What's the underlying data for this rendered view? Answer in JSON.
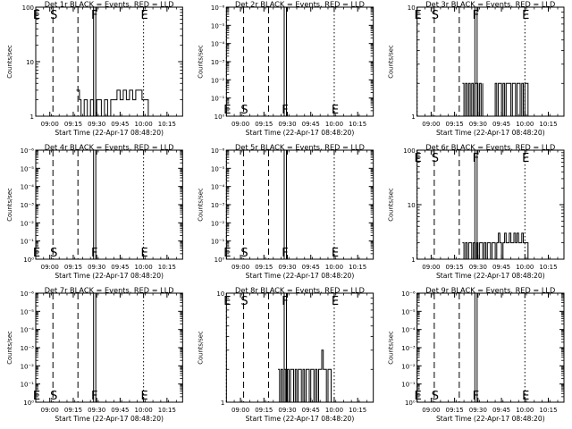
{
  "chart_data": [
    {
      "type": "line",
      "title": "Det 1r BLACK = Events, RED = LLD",
      "xlabel": "Start Time (22-Apr-17 08:48:20)",
      "ylabel": "Counts/sec",
      "yscale": "log",
      "ylim": [
        1,
        100
      ],
      "yticks": [
        "1",
        "10",
        "100"
      ],
      "xlim": [
        "08:51",
        "10:25"
      ],
      "xticks": [
        "09:00",
        "09:15",
        "09:30",
        "09:45",
        "10:00",
        "10:15"
      ],
      "markers": [
        {
          "label": "E",
          "time": "08:51",
          "style": "dotted"
        },
        {
          "label": "S",
          "time": "09:02",
          "style": "dashed"
        },
        {
          "label": "",
          "time": "09:18",
          "style": "dashed"
        },
        {
          "label": "F",
          "time": "09:28",
          "style": "solid"
        },
        {
          "label": "E",
          "time": "10:00",
          "style": "dotted"
        }
      ],
      "marker_label_position": "top",
      "series": [
        {
          "color": "#000000",
          "segments": [
            {
              "x": [
                "09:17",
                "09:19",
                "09:20",
                "09:22",
                "09:24",
                "09:26",
                "09:28",
                "09:30",
                "09:31",
                "09:33",
                "09:35",
                "09:37",
                "09:39",
                "09:41",
                "09:43",
                "09:45",
                "09:47",
                "09:49",
                "09:51",
                "09:53",
                "09:55",
                "09:57",
                "09:59",
                "10:01",
                "10:03",
                "10:05"
              ],
              "y": [
                3,
                2,
                1,
                2,
                1,
                2,
                1,
                2,
                2,
                1,
                2,
                1,
                2,
                2,
                3,
                2,
                3,
                2,
                3,
                2,
                3,
                3,
                2,
                2,
                1,
                1
              ]
            }
          ]
        }
      ]
    },
    {
      "type": "line",
      "title": "Det 2r BLACK = Events, RED = LLD",
      "xlabel": "Start Time (22-Apr-17 08:48:20)",
      "ylabel": "Counts/sec",
      "yscale": "log",
      "ylim": [
        1,
        1e-06
      ],
      "yticks": [
        "10⁰",
        "10⁻¹",
        "10⁻²",
        "10⁻³",
        "10⁻⁴",
        "10⁻⁵",
        "10⁻⁶"
      ],
      "xlim": [
        "08:51",
        "10:25"
      ],
      "xticks": [
        "09:00",
        "09:15",
        "09:30",
        "09:45",
        "10:00",
        "10:15"
      ],
      "markers": [
        {
          "label": "E",
          "time": "08:51",
          "style": "dotted"
        },
        {
          "label": "S",
          "time": "09:02",
          "style": "dashed"
        },
        {
          "label": "",
          "time": "09:18",
          "style": "dashed"
        },
        {
          "label": "F",
          "time": "09:28",
          "style": "solid"
        },
        {
          "label": "E",
          "time": "10:00",
          "style": "dotted"
        }
      ],
      "marker_label_position": "bottom",
      "series": []
    },
    {
      "type": "line",
      "title": "Det 3r BLACK = Events, RED = LLD",
      "xlabel": "Start Time (22-Apr-17 08:48:20)",
      "ylabel": "Counts/sec",
      "yscale": "log",
      "ylim": [
        1,
        10
      ],
      "yticks": [
        "1",
        "10"
      ],
      "xlim": [
        "08:51",
        "10:25"
      ],
      "xticks": [
        "09:00",
        "09:15",
        "09:30",
        "09:45",
        "10:00",
        "10:15"
      ],
      "markers": [
        {
          "label": "E",
          "time": "08:51",
          "style": "dotted"
        },
        {
          "label": "S",
          "time": "09:02",
          "style": "dashed"
        },
        {
          "label": "",
          "time": "09:18",
          "style": "dashed"
        },
        {
          "label": "F",
          "time": "09:28",
          "style": "solid"
        },
        {
          "label": "E",
          "time": "10:00",
          "style": "dotted"
        }
      ],
      "marker_label_position": "top",
      "series": [
        {
          "color": "#000000",
          "segments": [
            {
              "x": [
                "09:20",
                "09:21",
                "09:22",
                "09:23",
                "09:24",
                "09:25",
                "09:26",
                "09:27",
                "09:28",
                "09:29",
                "09:30",
                "09:31",
                "09:32",
                "09:33"
              ],
              "y": [
                2,
                1,
                2,
                1,
                2,
                1,
                2,
                1,
                2,
                2,
                1,
                2,
                1,
                2
              ]
            },
            {
              "x": [
                "09:40",
                "09:41",
                "09:42",
                "09:43",
                "09:44",
                "09:45",
                "09:46",
                "09:47",
                "09:48",
                "09:49",
                "09:50",
                "09:51",
                "09:52",
                "09:53",
                "09:54",
                "09:55",
                "09:56",
                "09:57",
                "09:58",
                "09:59",
                "10:00",
                "10:01",
                "10:02",
                "10:03"
              ],
              "y": [
                1,
                2,
                1,
                2,
                2,
                1,
                2,
                1,
                2,
                2,
                2,
                1,
                2,
                2,
                1,
                2,
                2,
                1,
                2,
                1,
                2,
                2,
                1,
                1
              ]
            }
          ]
        }
      ]
    },
    {
      "type": "line",
      "title": "Det 4r BLACK = Events, RED = LLD",
      "xlabel": "Start Time (22-Apr-17 08:48:20)",
      "ylabel": "Counts/sec",
      "yscale": "log",
      "ylim": [
        1,
        1e-06
      ],
      "yticks": [
        "10⁰",
        "10⁻¹",
        "10⁻²",
        "10⁻³",
        "10⁻⁴",
        "10⁻⁵",
        "10⁻⁶"
      ],
      "xlim": [
        "08:51",
        "10:25"
      ],
      "xticks": [
        "09:00",
        "09:15",
        "09:30",
        "09:45",
        "10:00",
        "10:15"
      ],
      "markers": [
        {
          "label": "E",
          "time": "08:51",
          "style": "dotted"
        },
        {
          "label": "S",
          "time": "09:02",
          "style": "dashed"
        },
        {
          "label": "",
          "time": "09:18",
          "style": "dashed"
        },
        {
          "label": "F",
          "time": "09:28",
          "style": "solid"
        },
        {
          "label": "E",
          "time": "10:00",
          "style": "dotted"
        }
      ],
      "marker_label_position": "bottom",
      "series": []
    },
    {
      "type": "line",
      "title": "Det 5r BLACK = Events, RED = LLD",
      "xlabel": "Start Time (22-Apr-17 08:48:20)",
      "ylabel": "Counts/sec",
      "yscale": "log",
      "ylim": [
        1,
        1e-06
      ],
      "yticks": [
        "10⁰",
        "10⁻¹",
        "10⁻²",
        "10⁻³",
        "10⁻⁴",
        "10⁻⁵",
        "10⁻⁶"
      ],
      "xlim": [
        "08:51",
        "10:25"
      ],
      "xticks": [
        "09:00",
        "09:15",
        "09:30",
        "09:45",
        "10:00",
        "10:15"
      ],
      "markers": [
        {
          "label": "E",
          "time": "08:51",
          "style": "dotted"
        },
        {
          "label": "S",
          "time": "09:02",
          "style": "dashed"
        },
        {
          "label": "",
          "time": "09:18",
          "style": "dashed"
        },
        {
          "label": "F",
          "time": "09:28",
          "style": "solid"
        },
        {
          "label": "E",
          "time": "10:00",
          "style": "dotted"
        }
      ],
      "marker_label_position": "bottom",
      "series": []
    },
    {
      "type": "line",
      "title": "Det 6r BLACK = Events, RED = LLD",
      "xlabel": "Start Time (22-Apr-17 08:48:20)",
      "ylabel": "Counts/sec",
      "yscale": "log",
      "ylim": [
        1,
        100
      ],
      "yticks": [
        "1",
        "10",
        "100"
      ],
      "xlim": [
        "08:51",
        "10:25"
      ],
      "xticks": [
        "09:00",
        "09:15",
        "09:30",
        "09:45",
        "10:00",
        "10:15"
      ],
      "markers": [
        {
          "label": "E",
          "time": "08:51",
          "style": "dotted"
        },
        {
          "label": "S",
          "time": "09:02",
          "style": "dashed"
        },
        {
          "label": "",
          "time": "09:18",
          "style": "dashed"
        },
        {
          "label": "F",
          "time": "09:28",
          "style": "solid"
        },
        {
          "label": "E",
          "time": "10:00",
          "style": "dotted"
        }
      ],
      "marker_label_position": "top",
      "series": [
        {
          "color": "#000000",
          "segments": [
            {
              "x": [
                "09:20",
                "09:21",
                "09:22",
                "09:23",
                "09:24",
                "09:25",
                "09:26",
                "09:27",
                "09:28",
                "09:29",
                "09:30",
                "09:31",
                "09:32",
                "09:33",
                "09:34",
                "09:35",
                "09:36",
                "09:37",
                "09:38",
                "09:39",
                "09:40",
                "09:41",
                "09:42",
                "09:43",
                "09:44",
                "09:45",
                "09:46",
                "09:47",
                "09:48",
                "09:49",
                "09:50",
                "09:51",
                "09:52",
                "09:53",
                "09:54",
                "09:55",
                "09:56",
                "09:57",
                "09:58",
                "09:59",
                "10:00",
                "10:01",
                "10:02",
                "10:03"
              ],
              "y": [
                2,
                1,
                2,
                1,
                2,
                2,
                1,
                2,
                1,
                2,
                1,
                2,
                2,
                1,
                2,
                1,
                2,
                2,
                1,
                2,
                2,
                1,
                2,
                3,
                2,
                1,
                2,
                3,
                2,
                2,
                3,
                2,
                2,
                3,
                2,
                3,
                2,
                2,
                3,
                2,
                2,
                2,
                1,
                1
              ]
            }
          ]
        }
      ]
    },
    {
      "type": "line",
      "title": "Det 7r BLACK = Events, RED = LLD",
      "xlabel": "Start Time (22-Apr-17 08:48:20)",
      "ylabel": "Counts/sec",
      "yscale": "log",
      "ylim": [
        1,
        1e-06
      ],
      "yticks": [
        "10⁰",
        "10⁻¹",
        "10⁻²",
        "10⁻³",
        "10⁻⁴",
        "10⁻⁵",
        "10⁻⁶"
      ],
      "xlim": [
        "08:51",
        "10:25"
      ],
      "xticks": [
        "09:00",
        "09:15",
        "09:30",
        "09:45",
        "10:00",
        "10:15"
      ],
      "markers": [
        {
          "label": "E",
          "time": "08:51",
          "style": "dotted"
        },
        {
          "label": "S",
          "time": "09:02",
          "style": "dashed"
        },
        {
          "label": "",
          "time": "09:18",
          "style": "dashed"
        },
        {
          "label": "F",
          "time": "09:28",
          "style": "solid"
        },
        {
          "label": "E",
          "time": "10:00",
          "style": "dotted"
        }
      ],
      "marker_label_position": "bottom",
      "series": []
    },
    {
      "type": "line",
      "title": "Det 8r BLACK = Events, RED = LLD",
      "xlabel": "Start Time (22-Apr-17 08:48:20)",
      "ylabel": "Counts/sec",
      "yscale": "log",
      "ylim": [
        1,
        10
      ],
      "yticks": [
        "1",
        "10"
      ],
      "xlim": [
        "08:51",
        "10:25"
      ],
      "xticks": [
        "09:00",
        "09:15",
        "09:30",
        "09:45",
        "10:00",
        "10:15"
      ],
      "markers": [
        {
          "label": "E",
          "time": "08:51",
          "style": "dotted"
        },
        {
          "label": "S",
          "time": "09:02",
          "style": "dashed"
        },
        {
          "label": "",
          "time": "09:18",
          "style": "dashed"
        },
        {
          "label": "F",
          "time": "09:28",
          "style": "solid"
        },
        {
          "label": "E",
          "time": "10:00",
          "style": "dotted"
        }
      ],
      "marker_label_position": "top",
      "series": [
        {
          "color": "#000000",
          "segments": [
            {
              "x": [
                "09:24",
                "09:25",
                "09:26",
                "09:27",
                "09:28",
                "09:29",
                "09:30",
                "09:31",
                "09:32",
                "09:33",
                "09:34",
                "09:35",
                "09:36",
                "09:37",
                "09:38",
                "09:39",
                "09:40",
                "09:41",
                "09:42",
                "09:43",
                "09:44",
                "09:45",
                "09:46",
                "09:47",
                "09:48",
                "09:49",
                "09:50",
                "09:51",
                "09:52",
                "09:53",
                "09:54",
                "09:55",
                "09:56",
                "09:57",
                "09:58"
              ],
              "y": [
                2,
                1,
                2,
                1,
                2,
                1,
                2,
                1,
                2,
                2,
                1,
                2,
                1,
                2,
                2,
                1,
                2,
                1,
                2,
                2,
                1,
                2,
                2,
                1,
                2,
                1,
                2,
                2,
                3,
                2,
                2,
                1,
                2,
                2,
                1
              ]
            }
          ]
        }
      ]
    },
    {
      "type": "line",
      "title": "Det 9r BLACK = Events, RED = LLD",
      "xlabel": "Start Time (22-Apr-17 08:48:20)",
      "ylabel": "Counts/sec",
      "yscale": "log",
      "ylim": [
        1,
        1e-06
      ],
      "yticks": [
        "10⁰",
        "10⁻¹",
        "10⁻²",
        "10⁻³",
        "10⁻⁴",
        "10⁻⁵",
        "10⁻⁶"
      ],
      "xlim": [
        "08:51",
        "10:25"
      ],
      "xticks": [
        "09:00",
        "09:15",
        "09:30",
        "09:45",
        "10:00",
        "10:15"
      ],
      "markers": [
        {
          "label": "E",
          "time": "08:51",
          "style": "dotted"
        },
        {
          "label": "S",
          "time": "09:02",
          "style": "dashed"
        },
        {
          "label": "",
          "time": "09:18",
          "style": "dashed"
        },
        {
          "label": "F",
          "time": "09:28",
          "style": "solid"
        },
        {
          "label": "E",
          "time": "10:00",
          "style": "dotted"
        }
      ],
      "marker_label_position": "bottom",
      "series": []
    }
  ]
}
